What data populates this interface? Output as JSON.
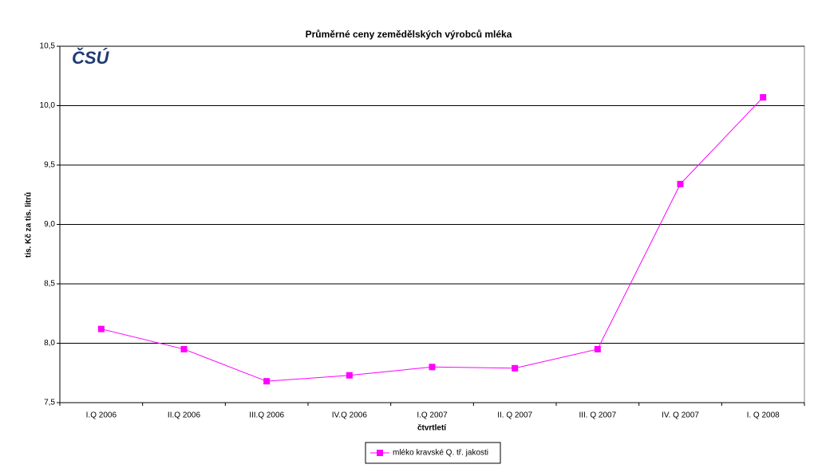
{
  "chart_data": {
    "type": "line",
    "title": "Průměrné ceny zemědělských výrobců mléka",
    "logo": "ČSÚ",
    "ylabel": "tis. Kč za tis. litrů",
    "xlabel": "čtvrtletí",
    "categories": [
      "I.Q 2006",
      "II.Q 2006",
      "III.Q 2006",
      "IV.Q 2006",
      "I.Q 2007",
      "II. Q 2007",
      "III. Q 2007",
      "IV. Q 2007",
      "I. Q 2008"
    ],
    "series": [
      {
        "name": "mléko kravské Q. tř. jakosti",
        "color": "#ff00ff",
        "values": [
          8.12,
          7.95,
          7.68,
          7.73,
          7.8,
          7.79,
          7.95,
          9.34,
          10.07
        ]
      }
    ],
    "ylim": [
      7.5,
      10.5
    ],
    "yticks": [
      {
        "value": 7.5,
        "label": "7,5"
      },
      {
        "value": 8.0,
        "label": "8,0"
      },
      {
        "value": 8.5,
        "label": "8,5"
      },
      {
        "value": 9.0,
        "label": "9,0"
      },
      {
        "value": 9.5,
        "label": "9,5"
      },
      {
        "value": 10.0,
        "label": "10,0"
      },
      {
        "value": 10.5,
        "label": "10,5"
      }
    ],
    "grid": true,
    "legend": "bottom"
  }
}
